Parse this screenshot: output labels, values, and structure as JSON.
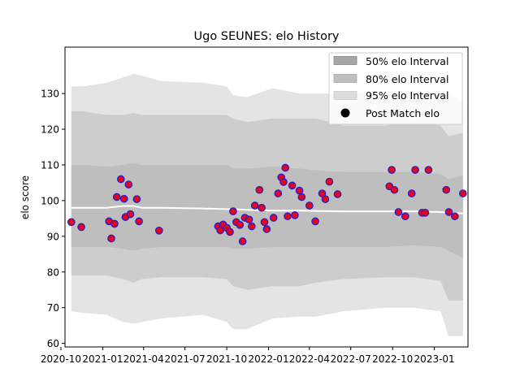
{
  "chart_data": {
    "type": "area",
    "title": "Ugo SEUNES: elo History",
    "xlabel": "",
    "ylabel": "elo score",
    "xlim": [
      "2020-10-10",
      "2023-03-16"
    ],
    "ylim": [
      59,
      143
    ],
    "x_ticks": [
      "2020-10",
      "2021-01",
      "2021-04",
      "2021-07",
      "2021-10",
      "2022-01",
      "2022-04",
      "2022-07",
      "2022-10",
      "2023-01"
    ],
    "y_ticks": [
      60,
      70,
      80,
      90,
      100,
      110,
      120,
      130
    ],
    "grid": false,
    "legend_position": "top-right",
    "legend": [
      {
        "label": "50% elo Interval",
        "color": "#a6a6a6"
      },
      {
        "label": "80% elo Interval",
        "color": "#bfbfbf"
      },
      {
        "label": "95% elo Interval",
        "color": "#dcdcdc"
      },
      {
        "label": "Post Match elo",
        "color": "#000000"
      }
    ],
    "bands": {
      "x": [
        "2020-10-24",
        "2020-11-20",
        "2021-01-10",
        "2021-02-15",
        "2021-03-10",
        "2021-03-28",
        "2021-05-10",
        "2021-08-10",
        "2021-10-01",
        "2021-10-15",
        "2021-11-15",
        "2022-01-10",
        "2022-03-10",
        "2022-04-15",
        "2022-06-15",
        "2022-09-15",
        "2022-11-15",
        "2023-01-15",
        "2023-02-01",
        "2023-03-05"
      ],
      "median": [
        98,
        98,
        98,
        98.5,
        98.5,
        98,
        98,
        97.8,
        97.6,
        97.6,
        97.4,
        97.2,
        97.2,
        97.1,
        97,
        97,
        97,
        96.8,
        96.6,
        96.4
      ],
      "p50": [
        [
          87,
          110
        ],
        [
          87,
          110
        ],
        [
          87,
          109.5
        ],
        [
          86.5,
          110
        ],
        [
          86,
          110.5
        ],
        [
          86.5,
          110
        ],
        [
          87,
          110
        ],
        [
          87,
          110
        ],
        [
          87,
          110
        ],
        [
          86.5,
          109
        ],
        [
          86.5,
          109
        ],
        [
          87,
          109.5
        ],
        [
          87,
          109
        ],
        [
          87,
          108.5
        ],
        [
          87,
          108
        ],
        [
          87,
          108
        ],
        [
          87.5,
          108
        ],
        [
          87,
          107.5
        ],
        [
          86,
          106
        ],
        [
          84,
          107
        ]
      ],
      "p80": [
        [
          79,
          125
        ],
        [
          79,
          125
        ],
        [
          79,
          124
        ],
        [
          78,
          124
        ],
        [
          77,
          124.5
        ],
        [
          78,
          124
        ],
        [
          78.5,
          124
        ],
        [
          78.5,
          124
        ],
        [
          78,
          124
        ],
        [
          76,
          123
        ],
        [
          75,
          122
        ],
        [
          76,
          123
        ],
        [
          76,
          123
        ],
        [
          77,
          123
        ],
        [
          78,
          121
        ],
        [
          78.5,
          121
        ],
        [
          78.5,
          122
        ],
        [
          77.5,
          121
        ],
        [
          72,
          118
        ],
        [
          72,
          119
        ]
      ],
      "p95": [
        [
          69,
          132
        ],
        [
          68.5,
          132
        ],
        [
          68,
          133
        ],
        [
          66,
          134.5
        ],
        [
          65.5,
          135.5
        ],
        [
          66,
          135
        ],
        [
          67,
          133.5
        ],
        [
          68,
          133
        ],
        [
          66,
          132
        ],
        [
          64,
          129.5
        ],
        [
          64,
          129
        ],
        [
          67,
          131.5
        ],
        [
          67.5,
          130
        ],
        [
          67.5,
          130
        ],
        [
          69,
          130
        ],
        [
          70,
          130.5
        ],
        [
          70,
          130.5
        ],
        [
          69,
          130
        ],
        [
          62,
          130
        ],
        [
          62,
          128
        ]
      ]
    },
    "series": [
      {
        "name": "Post Match elo",
        "x": [
          "2020-10-24",
          "2020-11-15",
          "2021-01-15",
          "2021-01-20",
          "2021-01-27",
          "2021-02-01",
          "2021-02-10",
          "2021-02-17",
          "2021-02-20",
          "2021-02-27",
          "2021-03-03",
          "2021-03-17",
          "2021-03-22",
          "2021-05-05",
          "2021-09-12",
          "2021-09-17",
          "2021-09-23",
          "2021-10-01",
          "2021-10-08",
          "2021-10-15",
          "2021-10-22",
          "2021-10-30",
          "2021-11-05",
          "2021-11-10",
          "2021-11-19",
          "2021-11-25",
          "2021-12-02",
          "2021-12-12",
          "2021-12-17",
          "2021-12-23",
          "2021-12-28",
          "2022-01-12",
          "2022-01-22",
          "2022-01-29",
          "2022-02-03",
          "2022-02-07",
          "2022-02-12",
          "2022-02-22",
          "2022-02-28",
          "2022-03-10",
          "2022-03-15",
          "2022-04-01",
          "2022-04-14",
          "2022-04-29",
          "2022-05-06",
          "2022-05-15",
          "2022-06-02",
          "2022-09-24",
          "2022-09-29",
          "2022-10-05",
          "2022-10-14",
          "2022-10-29",
          "2022-11-12",
          "2022-11-20",
          "2022-12-05",
          "2022-12-12",
          "2022-12-19",
          "2023-01-27",
          "2023-02-02",
          "2023-02-15",
          "2023-03-05"
        ],
        "y": [
          94,
          92.6,
          94.2,
          89.4,
          93.5,
          101,
          106,
          100.5,
          95.4,
          104.5,
          96.2,
          100.4,
          94.2,
          91.6,
          92.8,
          91.7,
          93.3,
          92.4,
          91.2,
          97,
          94,
          93.2,
          88.6,
          95.2,
          94.7,
          92.8,
          98.6,
          103,
          98,
          94,
          92,
          95.2,
          102,
          106.5,
          105.2,
          109.2,
          95.6,
          104.2,
          95.9,
          102.8,
          101,
          98.6,
          94.2,
          102,
          100.4,
          105.3,
          101.8,
          104,
          108.6,
          103,
          96.8,
          95.6,
          102,
          108.6,
          96.6,
          96.6,
          108.6,
          103,
          96.8,
          95.6,
          102
        ]
      }
    ]
  }
}
